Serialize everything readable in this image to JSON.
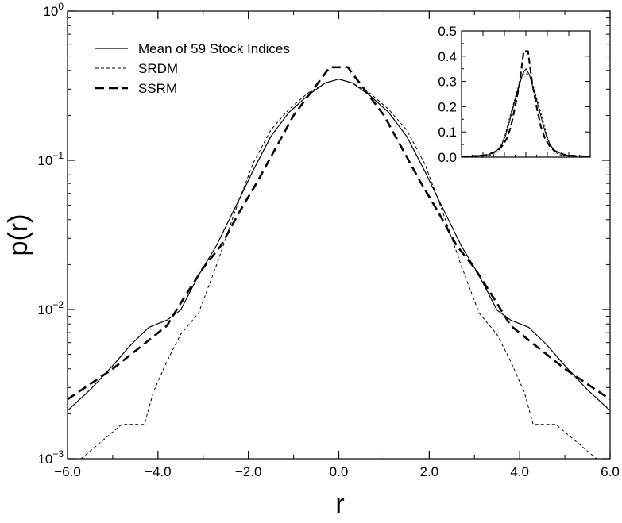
{
  "chart_data": [
    {
      "type": "line",
      "title": "",
      "xlabel": "r",
      "ylabel": "p(r)",
      "yscale": "log",
      "xlim": [
        -6.0,
        6.0
      ],
      "ylim": [
        0.001,
        1.0
      ],
      "x_ticks": [
        -6.0,
        -4.0,
        -2.0,
        0.0,
        2.0,
        4.0,
        6.0
      ],
      "x_tick_labels": [
        "−6.0",
        "−4.0",
        "−2.0",
        "0.0",
        "2.0",
        "4.0",
        "6.0"
      ],
      "y_ticks": [
        {
          "value": 1.0,
          "base": "10",
          "exp": "0"
        },
        {
          "value": 0.1,
          "base": "10",
          "exp": "−1"
        },
        {
          "value": 0.01,
          "base": "10",
          "exp": "−2"
        },
        {
          "value": 0.001,
          "base": "10",
          "exp": "−3"
        }
      ],
      "legend": {
        "position": "top-left",
        "entries": [
          "Mean of 59 Stock Indices",
          "SRDM",
          "SSRM"
        ]
      },
      "series": [
        {
          "name": "Mean of 59 Stock Indices",
          "style": "solid",
          "x": [
            -6.0,
            -5.5,
            -5.0,
            -4.6,
            -4.2,
            -3.8,
            -3.5,
            -3.1,
            -2.7,
            -2.5,
            -2.2,
            -1.9,
            -1.5,
            -1.1,
            -0.7,
            -0.3,
            0.0,
            0.3,
            0.7,
            1.1,
            1.5,
            1.9,
            2.2,
            2.5,
            2.7,
            3.1,
            3.5,
            3.8,
            4.2,
            4.6,
            5.0,
            5.5,
            6.0
          ],
          "y": [
            0.0021,
            0.0029,
            0.0042,
            0.0058,
            0.0076,
            0.0085,
            0.0099,
            0.017,
            0.027,
            0.036,
            0.055,
            0.085,
            0.145,
            0.21,
            0.27,
            0.33,
            0.35,
            0.33,
            0.27,
            0.21,
            0.145,
            0.085,
            0.055,
            0.036,
            0.027,
            0.017,
            0.0099,
            0.0085,
            0.0076,
            0.0058,
            0.0042,
            0.0029,
            0.0021
          ]
        },
        {
          "name": "SRDM",
          "style": "dashed",
          "x": [
            -5.7,
            -4.8,
            -4.3,
            -4.1,
            -3.8,
            -3.5,
            -3.1,
            -2.7,
            -2.3,
            -1.9,
            -1.5,
            -1.1,
            -0.7,
            -0.3,
            0.0,
            0.3,
            0.7,
            1.1,
            1.5,
            1.9,
            2.3,
            2.7,
            3.1,
            3.5,
            3.8,
            4.1,
            4.3,
            4.8,
            5.7
          ],
          "y": [
            0.001,
            0.0017,
            0.0017,
            0.0028,
            0.0045,
            0.0068,
            0.0095,
            0.02,
            0.045,
            0.095,
            0.16,
            0.22,
            0.28,
            0.33,
            0.33,
            0.33,
            0.28,
            0.22,
            0.16,
            0.095,
            0.045,
            0.02,
            0.0095,
            0.0068,
            0.0045,
            0.0028,
            0.0017,
            0.0017,
            0.001
          ]
        },
        {
          "name": "SSRM",
          "style": "long-dashed",
          "x": [
            -6.0,
            -5.0,
            -4.3,
            -3.8,
            -3.5,
            -3.0,
            -2.6,
            -2.2,
            -1.8,
            -1.4,
            -1.0,
            -0.6,
            -0.2,
            0.0,
            0.2,
            0.6,
            1.0,
            1.4,
            1.8,
            2.2,
            2.6,
            3.0,
            3.5,
            3.8,
            4.3,
            5.0,
            6.0
          ],
          "y": [
            0.0025,
            0.004,
            0.0059,
            0.0078,
            0.011,
            0.019,
            0.027,
            0.045,
            0.072,
            0.12,
            0.2,
            0.29,
            0.42,
            0.42,
            0.42,
            0.29,
            0.2,
            0.12,
            0.072,
            0.045,
            0.027,
            0.019,
            0.011,
            0.0078,
            0.0059,
            0.004,
            0.0025
          ]
        }
      ]
    },
    {
      "type": "line",
      "title": "",
      "xlabel": "",
      "ylabel": "",
      "yscale": "linear",
      "xlim": [
        -6.0,
        6.0
      ],
      "ylim": [
        0.0,
        0.5
      ],
      "y_ticks": [
        0.0,
        0.1,
        0.2,
        0.3,
        0.4,
        0.5
      ],
      "y_tick_labels": [
        "0.0",
        "0.1",
        "0.2",
        "0.3",
        "0.4",
        "0.5"
      ],
      "x_ticks": [
        -6.0,
        -4.0,
        -2.0,
        0.0,
        2.0,
        4.0,
        6.0
      ],
      "note": "inset showing the same three distributions on a linear scale",
      "series_ref": [
        "Mean of 59 Stock Indices",
        "SRDM",
        "SSRM"
      ]
    }
  ]
}
